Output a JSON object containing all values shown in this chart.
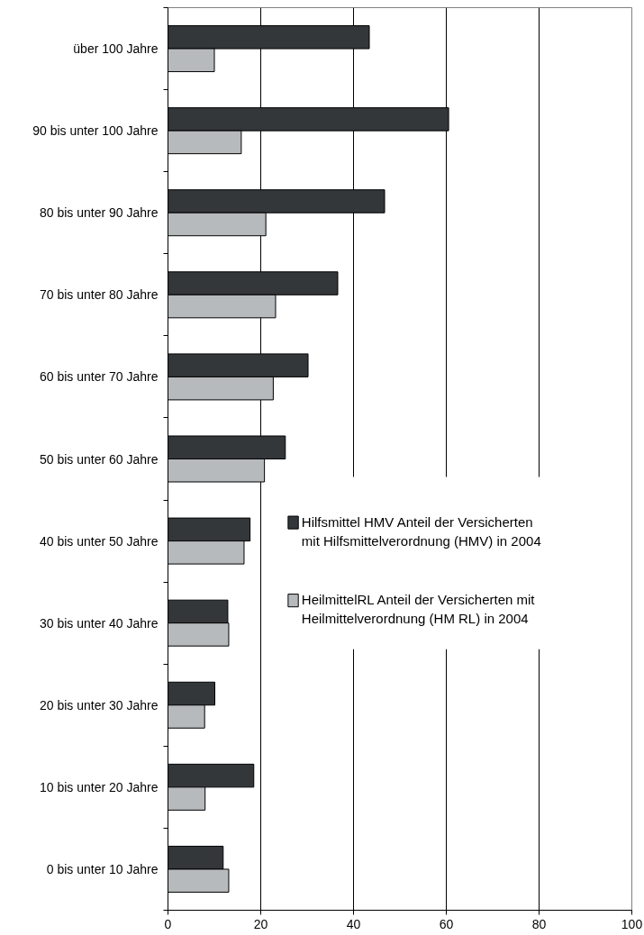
{
  "chart_data": {
    "type": "bar",
    "orientation": "horizontal",
    "categories": [
      "über 100 Jahre",
      "90 bis unter 100 Jahre",
      "80 bis unter 90 Jahre",
      "70 bis unter 80 Jahre",
      "60 bis unter 70 Jahre",
      "50 bis unter 60 Jahre",
      "40 bis unter 50 Jahre",
      "30 bis unter 40 Jahre",
      "20 bis unter 30 Jahre",
      "10 bis unter 20 Jahre",
      "0 bis unter 10 Jahre"
    ],
    "series": [
      {
        "name": "Hilfsmittel HMV Anteil der Versicherten mit Hilfsmittelverordnung (HMV) in  2004",
        "color": "#33373a",
        "values": [
          43.4,
          60.5,
          46.7,
          36.6,
          30.2,
          25.3,
          17.7,
          12.9,
          10.1,
          18.5,
          11.9
        ]
      },
      {
        "name": "HeilmittelRL Anteil der Versicherten mit Heilmittelverordnung (HM RL) in 2004",
        "color": "#b7babc",
        "values": [
          10.0,
          15.8,
          21.1,
          23.2,
          22.7,
          20.8,
          16.4,
          13.1,
          7.9,
          8.0,
          13.1
        ]
      }
    ],
    "xlim": [
      0,
      100
    ],
    "xticks": [
      0,
      20,
      40,
      60,
      80,
      100
    ],
    "grid": "x",
    "legend": "right"
  }
}
